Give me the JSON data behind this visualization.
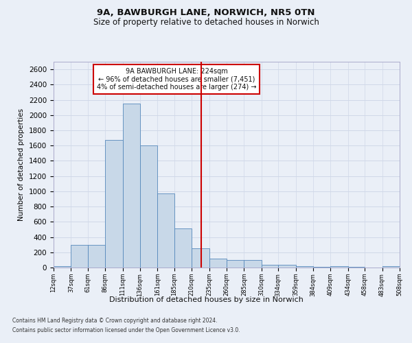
{
  "title1": "9A, BAWBURGH LANE, NORWICH, NR5 0TN",
  "title2": "Size of property relative to detached houses in Norwich",
  "xlabel": "Distribution of detached houses by size in Norwich",
  "ylabel": "Number of detached properties",
  "footnote1": "Contains HM Land Registry data © Crown copyright and database right 2024.",
  "footnote2": "Contains public sector information licensed under the Open Government Licence v3.0.",
  "annotation_line1": "9A BAWBURGH LANE: 224sqm",
  "annotation_line2": "← 96% of detached houses are smaller (7,451)",
  "annotation_line3": "4% of semi-detached houses are larger (274) →",
  "bar_color": "#c8d8e8",
  "bar_edge_color": "#5588bb",
  "grid_color": "#d0d8e8",
  "vline_color": "#cc0000",
  "vline_x": 224,
  "bin_edges": [
    12,
    37,
    61,
    86,
    111,
    136,
    161,
    185,
    210,
    235,
    260,
    285,
    310,
    334,
    359,
    384,
    409,
    434,
    458,
    483,
    508
  ],
  "bar_heights": [
    20,
    300,
    300,
    1670,
    2150,
    1600,
    975,
    510,
    250,
    120,
    100,
    100,
    40,
    35,
    15,
    10,
    20,
    10,
    0,
    20
  ],
  "tick_labels": [
    "12sqm",
    "37sqm",
    "61sqm",
    "86sqm",
    "111sqm",
    "136sqm",
    "161sqm",
    "185sqm",
    "210sqm",
    "235sqm",
    "260sqm",
    "285sqm",
    "310sqm",
    "334sqm",
    "359sqm",
    "384sqm",
    "409sqm",
    "434sqm",
    "458sqm",
    "483sqm",
    "508sqm"
  ],
  "ylim": [
    0,
    2700
  ],
  "yticks": [
    0,
    200,
    400,
    600,
    800,
    1000,
    1200,
    1400,
    1600,
    1800,
    2000,
    2200,
    2400,
    2600
  ],
  "background_color": "#eaeff7"
}
